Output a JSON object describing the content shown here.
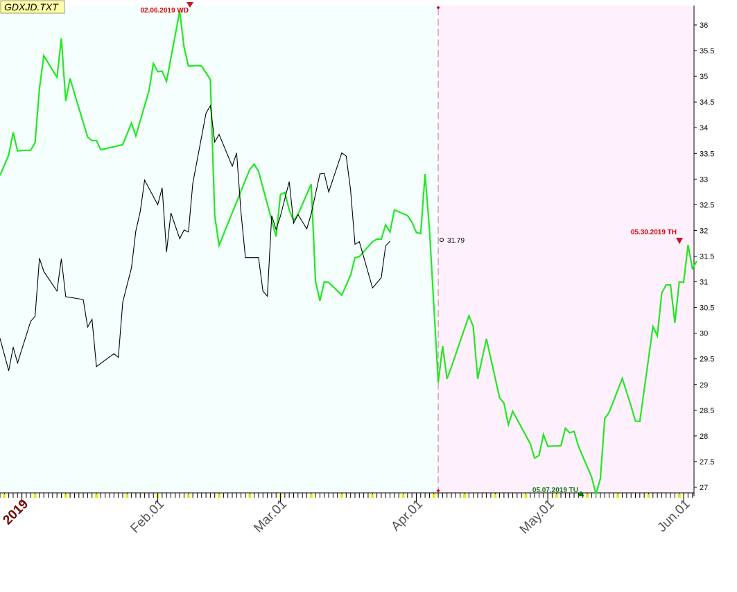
{
  "title": "GDXJD.TXT",
  "colors": {
    "zone_left": "#f5fffe",
    "zone_right": "#fff0fd",
    "green_line": "#22e822",
    "black_line": "#000000",
    "marker_red": "#dd0000",
    "marker_green": "#127a12",
    "year_label": "#7a0000",
    "tick_yellow": "#e8e800"
  },
  "annotations": {
    "top_marker": "02.06.2019 WD",
    "right_marker": "05.30.2019 TH",
    "bottom_marker": "05.07.2019 TU",
    "price_label": "31.79"
  },
  "chart_data": {
    "type": "line",
    "title": "GDXJD.TXT",
    "x_range": [
      "2018-12-27",
      "2019-06-04"
    ],
    "ylim": [
      26.87,
      36.44
    ],
    "x_ticks": [
      {
        "label": "2019",
        "date": "2019-01-01"
      },
      {
        "label": "Feb.01",
        "date": "2019-02-01"
      },
      {
        "label": "Mar.01",
        "date": "2019-03-01"
      },
      {
        "label": "Apr.01",
        "date": "2019-04-01"
      },
      {
        "label": "May.01",
        "date": "2019-05-01"
      },
      {
        "label": "Jun.01",
        "date": "2019-06-01"
      }
    ],
    "y_ticks": [
      27,
      27.5,
      28,
      28.5,
      29,
      29.5,
      30,
      30.5,
      31,
      31.5,
      32,
      32.5,
      33,
      33.5,
      34,
      34.5,
      35,
      35.5,
      36
    ],
    "divider_date": "2019-04-06",
    "series": [
      {
        "color": "#22e822",
        "points": [
          [
            "2018-12-27",
            33.07
          ],
          [
            "2018-12-29",
            33.47
          ],
          [
            "2018-12-30",
            33.91
          ],
          [
            "2018-12-31",
            33.55
          ],
          [
            "2019-01-02",
            33.56
          ],
          [
            "2019-01-03",
            33.56
          ],
          [
            "2019-01-04",
            33.71
          ],
          [
            "2019-01-05",
            34.76
          ],
          [
            "2019-01-06",
            35.4
          ],
          [
            "2019-01-09",
            34.98
          ],
          [
            "2019-01-10",
            35.74
          ],
          [
            "2019-01-11",
            34.52
          ],
          [
            "2019-01-12",
            34.96
          ],
          [
            "2019-01-13",
            34.66
          ],
          [
            "2019-01-16",
            33.82
          ],
          [
            "2019-01-17",
            33.75
          ],
          [
            "2019-01-18",
            33.75
          ],
          [
            "2019-01-19",
            33.57
          ],
          [
            "2019-01-24",
            33.67
          ],
          [
            "2019-01-26",
            34.09
          ],
          [
            "2019-01-27",
            33.84
          ],
          [
            "2019-01-30",
            34.72
          ],
          [
            "2019-01-31",
            35.25
          ],
          [
            "2019-02-01",
            35.09
          ],
          [
            "2019-02-02",
            35.1
          ],
          [
            "2019-02-03",
            34.9
          ],
          [
            "2019-02-06",
            36.27
          ],
          [
            "2019-02-07",
            35.57
          ],
          [
            "2019-02-08",
            35.2
          ],
          [
            "2019-02-10",
            35.21
          ],
          [
            "2019-02-11",
            35.2
          ],
          [
            "2019-02-13",
            34.94
          ],
          [
            "2019-02-14",
            32.29
          ],
          [
            "2019-02-15",
            31.71
          ],
          [
            "2019-02-22",
            33.19
          ],
          [
            "2019-02-23",
            33.29
          ],
          [
            "2019-02-24",
            33.15
          ],
          [
            "2019-02-28",
            31.88
          ],
          [
            "2019-03-01",
            32.7
          ],
          [
            "2019-03-02",
            32.74
          ],
          [
            "2019-03-03",
            32.4
          ],
          [
            "2019-03-04",
            32.19
          ],
          [
            "2019-03-05",
            32.31
          ],
          [
            "2019-03-08",
            32.9
          ],
          [
            "2019-03-09",
            31.01
          ],
          [
            "2019-03-10",
            30.63
          ],
          [
            "2019-03-11",
            31.0
          ],
          [
            "2019-03-12",
            30.99
          ],
          [
            "2019-03-15",
            30.74
          ],
          [
            "2019-03-17",
            31.13
          ],
          [
            "2019-03-18",
            31.47
          ],
          [
            "2019-03-19",
            31.49
          ],
          [
            "2019-03-22",
            31.78
          ],
          [
            "2019-03-23",
            31.83
          ],
          [
            "2019-03-24",
            31.83
          ],
          [
            "2019-03-25",
            32.11
          ],
          [
            "2019-03-26",
            31.97
          ],
          [
            "2019-03-27",
            32.4
          ],
          [
            "2019-03-30",
            32.29
          ],
          [
            "2019-03-31",
            32.16
          ],
          [
            "2019-04-01",
            31.96
          ],
          [
            "2019-04-02",
            31.94
          ],
          [
            "2019-04-03",
            33.1
          ],
          [
            "2019-04-04",
            32.03
          ],
          [
            "2019-04-06",
            29.04
          ],
          [
            "2019-04-07",
            29.75
          ],
          [
            "2019-04-08",
            29.11
          ],
          [
            "2019-04-09",
            29.34
          ],
          [
            "2019-04-13",
            30.34
          ],
          [
            "2019-04-14",
            30.13
          ],
          [
            "2019-04-15",
            29.11
          ],
          [
            "2019-04-17",
            29.89
          ],
          [
            "2019-04-20",
            28.74
          ],
          [
            "2019-04-21",
            28.64
          ],
          [
            "2019-04-22",
            28.22
          ],
          [
            "2019-04-23",
            28.48
          ],
          [
            "2019-04-27",
            27.85
          ],
          [
            "2019-04-28",
            27.57
          ],
          [
            "2019-04-29",
            27.62
          ],
          [
            "2019-04-30",
            28.03
          ],
          [
            "2019-05-01",
            27.8
          ],
          [
            "2019-05-04",
            27.81
          ],
          [
            "2019-05-05",
            28.15
          ],
          [
            "2019-05-06",
            28.06
          ],
          [
            "2019-05-07",
            28.09
          ],
          [
            "2019-05-08",
            27.8
          ],
          [
            "2019-05-11",
            27.2
          ],
          [
            "2019-05-12",
            26.87
          ],
          [
            "2019-05-13",
            27.17
          ],
          [
            "2019-05-14",
            28.34
          ],
          [
            "2019-05-15",
            28.46
          ],
          [
            "2019-05-18",
            29.12
          ],
          [
            "2019-05-20",
            28.58
          ],
          [
            "2019-05-21",
            28.29
          ],
          [
            "2019-05-22",
            28.28
          ],
          [
            "2019-05-25",
            30.13
          ],
          [
            "2019-05-26",
            29.95
          ],
          [
            "2019-05-27",
            30.78
          ],
          [
            "2019-05-28",
            30.94
          ],
          [
            "2019-05-29",
            30.94
          ],
          [
            "2019-05-30",
            30.2
          ],
          [
            "2019-05-31",
            31.0
          ],
          [
            "2019-06-01",
            30.99
          ],
          [
            "2019-06-02",
            31.72
          ],
          [
            "2019-06-03",
            31.26
          ],
          [
            "2019-06-04",
            31.4
          ]
        ]
      },
      {
        "color": "#000000",
        "points": [
          [
            "2018-12-27",
            29.9
          ],
          [
            "2018-12-29",
            29.27
          ],
          [
            "2018-12-30",
            29.73
          ],
          [
            "2018-12-31",
            29.42
          ],
          [
            "2019-01-03",
            30.23
          ],
          [
            "2019-01-04",
            30.33
          ],
          [
            "2019-01-05",
            31.46
          ],
          [
            "2019-01-06",
            31.2
          ],
          [
            "2019-01-09",
            30.82
          ],
          [
            "2019-01-10",
            31.45
          ],
          [
            "2019-01-11",
            30.71
          ],
          [
            "2019-01-14",
            30.67
          ],
          [
            "2019-01-15",
            30.65
          ],
          [
            "2019-01-16",
            30.12
          ],
          [
            "2019-01-17",
            30.27
          ],
          [
            "2019-01-18",
            29.35
          ],
          [
            "2019-01-21",
            29.54
          ],
          [
            "2019-01-22",
            29.6
          ],
          [
            "2019-01-23",
            29.53
          ],
          [
            "2019-01-24",
            30.6
          ],
          [
            "2019-01-25",
            30.94
          ],
          [
            "2019-01-26",
            31.27
          ],
          [
            "2019-01-27",
            31.99
          ],
          [
            "2019-01-28",
            32.37
          ],
          [
            "2019-01-29",
            32.98
          ],
          [
            "2019-02-01",
            32.5
          ],
          [
            "2019-02-02",
            32.83
          ],
          [
            "2019-02-03",
            31.58
          ],
          [
            "2019-02-04",
            32.34
          ],
          [
            "2019-02-06",
            31.84
          ],
          [
            "2019-02-07",
            32.01
          ],
          [
            "2019-02-08",
            31.97
          ],
          [
            "2019-02-09",
            32.92
          ],
          [
            "2019-02-12",
            34.28
          ],
          [
            "2019-02-13",
            34.43
          ],
          [
            "2019-02-14",
            33.72
          ],
          [
            "2019-02-15",
            33.87
          ],
          [
            "2019-02-18",
            33.25
          ],
          [
            "2019-02-19",
            33.51
          ],
          [
            "2019-02-20",
            32.35
          ],
          [
            "2019-02-21",
            31.47
          ],
          [
            "2019-02-23",
            31.47
          ],
          [
            "2019-02-24",
            31.47
          ],
          [
            "2019-02-25",
            30.82
          ],
          [
            "2019-02-26",
            30.72
          ],
          [
            "2019-02-27",
            32.29
          ],
          [
            "2019-02-28",
            32.02
          ],
          [
            "2019-03-01",
            32.28
          ],
          [
            "2019-03-03",
            32.95
          ],
          [
            "2019-03-04",
            32.14
          ],
          [
            "2019-03-05",
            32.31
          ],
          [
            "2019-03-07",
            32.03
          ],
          [
            "2019-03-08",
            32.32
          ],
          [
            "2019-03-10",
            33.1
          ],
          [
            "2019-03-11",
            33.11
          ],
          [
            "2019-03-12",
            32.75
          ],
          [
            "2019-03-15",
            33.51
          ],
          [
            "2019-03-16",
            33.45
          ],
          [
            "2019-03-17",
            32.78
          ],
          [
            "2019-03-18",
            31.73
          ],
          [
            "2019-03-19",
            31.78
          ],
          [
            "2019-03-22",
            30.88
          ],
          [
            "2019-03-24",
            31.08
          ],
          [
            "2019-03-25",
            31.7
          ],
          [
            "2019-03-26",
            31.79
          ]
        ]
      }
    ]
  }
}
